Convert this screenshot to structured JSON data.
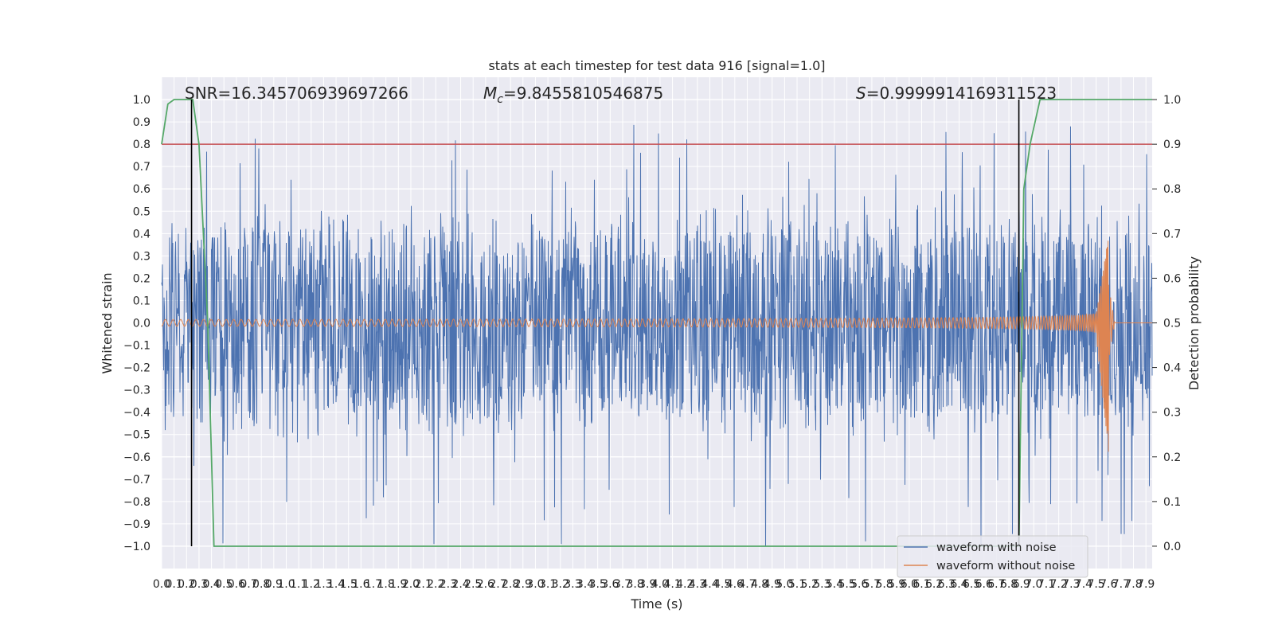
{
  "chart_data": {
    "type": "line",
    "title": "stats at each timestep for test data 916 [signal=1.0]",
    "xlabel": "Time (s)",
    "ylabel": "Whitened strain",
    "ylabel_right": "Detection probability",
    "xlim": [
      0.0,
      7.95
    ],
    "ylim": [
      -1.1,
      1.1
    ],
    "ylim_right": [
      -0.05,
      1.05
    ],
    "yticks": [
      "−1.0",
      "−0.9",
      "−0.8",
      "−0.7",
      "−0.6",
      "−0.5",
      "−0.4",
      "−0.3",
      "−0.2",
      "−0.1",
      "0.0",
      "0.1",
      "0.2",
      "0.3",
      "0.4",
      "0.5",
      "0.6",
      "0.7",
      "0.8",
      "0.9",
      "1.0"
    ],
    "yticks_right": [
      "0.0",
      "0.1",
      "0.2",
      "0.3",
      "0.4",
      "0.5",
      "0.6",
      "0.7",
      "0.8",
      "0.9",
      "1.0"
    ],
    "xtick_step": 0.1,
    "xtick_max": 7.9,
    "grid": true,
    "legend_position": "lower-right",
    "annotations": {
      "snr": "SNR=16.345706939697266",
      "mc_symbol": "M",
      "mc_sub": "c",
      "mc_value": "=9.8455810546875",
      "s_symbol": "S",
      "s_value": "=0.9999914169311523"
    },
    "series": [
      {
        "name": "waveform with noise",
        "color": "#4c72b0",
        "kind": "noise",
        "typical_amplitude": [
          -0.45,
          0.45
        ],
        "range": [
          -1.0,
          0.9
        ]
      },
      {
        "name": "waveform without noise",
        "color": "#dd8452",
        "kind": "chirp",
        "start_amplitude": 0.015,
        "peak_amplitude": 0.43,
        "min_value": -0.65,
        "merger_time": 7.6,
        "ringdown_end": 7.65
      },
      {
        "name": "detection probability",
        "color": "#55a868",
        "axis": "right",
        "x": [
          0.0,
          0.05,
          0.1,
          0.25,
          0.3,
          0.37,
          0.42,
          6.88,
          6.92,
          6.97,
          7.05,
          7.1,
          7.95
        ],
        "y": [
          0.9,
          0.99,
          1.0,
          1.0,
          0.9,
          0.5,
          0.0,
          0.0,
          0.8,
          0.9,
          1.0,
          1.0,
          1.0
        ]
      }
    ],
    "threshold": {
      "axis": "right",
      "value": 0.9,
      "color": "#c44e52"
    },
    "vertical_lines": [
      {
        "x": 0.24,
        "y_range": [
          -1.0,
          1.0
        ],
        "color": "#000000"
      },
      {
        "x": 6.88,
        "y_range": [
          -1.0,
          1.0
        ],
        "color": "#000000"
      }
    ]
  }
}
